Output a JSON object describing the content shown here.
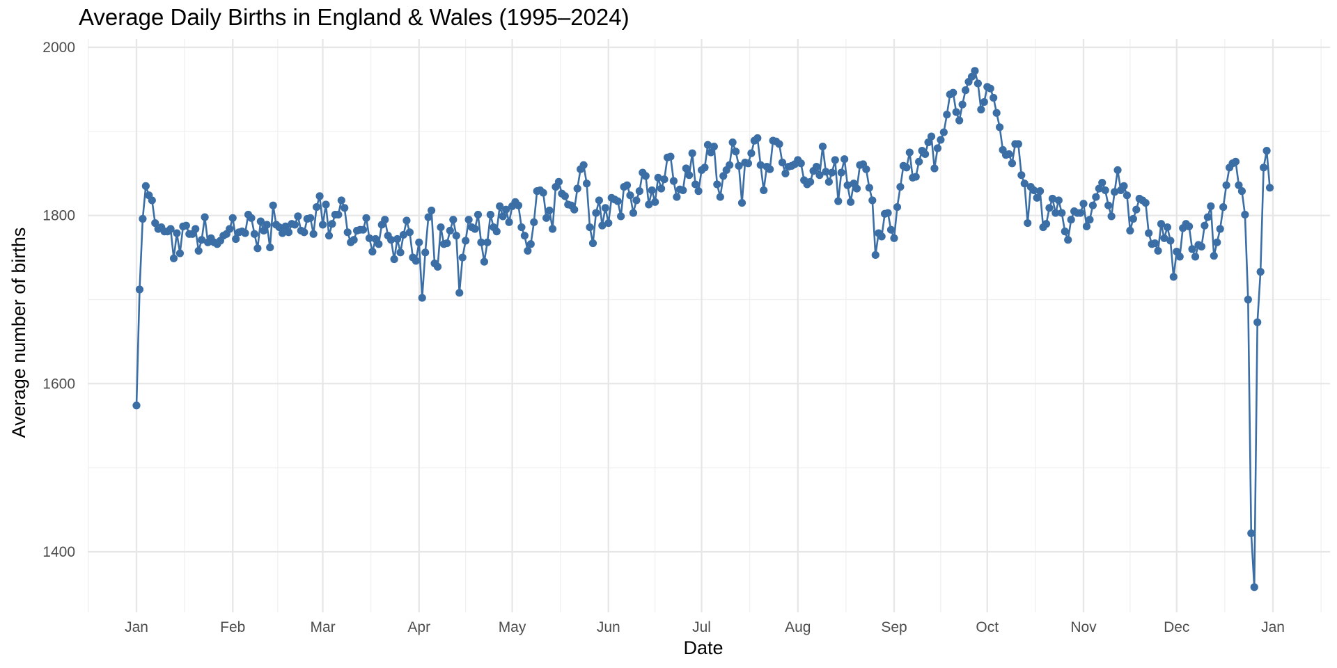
{
  "chart_data": {
    "type": "line",
    "title": "Average Daily Births in England & Wales (1995–2024)",
    "xlabel": "Date",
    "ylabel": "Average number of births",
    "ylim": [
      1330,
      2000
    ],
    "yticks": [
      1400,
      1600,
      1800,
      2000
    ],
    "xticks": [
      "Jan",
      "Feb",
      "Mar",
      "Apr",
      "May",
      "Jun",
      "Jul",
      "Aug",
      "Sep",
      "Oct",
      "Nov",
      "Dec",
      "Jan"
    ],
    "xtick_days": [
      0,
      31,
      60,
      91,
      121,
      152,
      182,
      213,
      244,
      274,
      305,
      335,
      366
    ],
    "grid": true,
    "legend": "none",
    "series_color": "#3A6EA5",
    "series": [
      {
        "name": "Average daily births",
        "x_start": "Jan 1",
        "x_end": "Dec 31",
        "values": [
          1574,
          1712,
          1796,
          1835,
          1824,
          1818,
          1791,
          1784,
          1786,
          1781,
          1781,
          1784,
          1749,
          1779,
          1755,
          1787,
          1788,
          1778,
          1778,
          1784,
          1758,
          1771,
          1798,
          1768,
          1773,
          1768,
          1766,
          1770,
          1776,
          1778,
          1784,
          1797,
          1772,
          1780,
          1781,
          1779,
          1801,
          1797,
          1778,
          1761,
          1793,
          1782,
          1789,
          1762,
          1812,
          1789,
          1786,
          1779,
          1787,
          1780,
          1790,
          1789,
          1799,
          1782,
          1780,
          1796,
          1797,
          1778,
          1810,
          1823,
          1789,
          1813,
          1776,
          1790,
          1801,
          1801,
          1818,
          1809,
          1780,
          1768,
          1771,
          1782,
          1783,
          1783,
          1797,
          1773,
          1757,
          1772,
          1766,
          1789,
          1795,
          1776,
          1771,
          1748,
          1772,
          1756,
          1777,
          1794,
          1780,
          1750,
          1746,
          1768,
          1702,
          1756,
          1798,
          1806,
          1743,
          1739,
          1786,
          1766,
          1767,
          1782,
          1795,
          1776,
          1708,
          1750,
          1770,
          1795,
          1786,
          1784,
          1801,
          1768,
          1745,
          1768,
          1801,
          1786,
          1781,
          1811,
          1799,
          1807,
          1792,
          1811,
          1816,
          1812,
          1786,
          1776,
          1758,
          1766,
          1792,
          1829,
          1830,
          1827,
          1797,
          1806,
          1784,
          1834,
          1840,
          1826,
          1823,
          1813,
          1812,
          1807,
          1832,
          1855,
          1860,
          1838,
          1786,
          1767,
          1803,
          1818,
          1788,
          1809,
          1791,
          1821,
          1819,
          1817,
          1799,
          1834,
          1836,
          1824,
          1803,
          1818,
          1829,
          1851,
          1847,
          1813,
          1830,
          1816,
          1845,
          1832,
          1843,
          1869,
          1870,
          1841,
          1822,
          1831,
          1830,
          1856,
          1848,
          1874,
          1837,
          1829,
          1854,
          1857,
          1884,
          1875,
          1882,
          1837,
          1822,
          1847,
          1854,
          1860,
          1887,
          1876,
          1859,
          1815,
          1863,
          1862,
          1874,
          1889,
          1892,
          1860,
          1830,
          1858,
          1855,
          1889,
          1888,
          1885,
          1863,
          1850,
          1858,
          1859,
          1861,
          1866,
          1862,
          1842,
          1837,
          1840,
          1853,
          1858,
          1848,
          1882,
          1852,
          1840,
          1851,
          1866,
          1817,
          1851,
          1867,
          1836,
          1816,
          1838,
          1832,
          1860,
          1861,
          1855,
          1833,
          1818,
          1753,
          1779,
          1775,
          1802,
          1803,
          1783,
          1773,
          1810,
          1834,
          1859,
          1857,
          1875,
          1845,
          1846,
          1864,
          1877,
          1873,
          1887,
          1894,
          1856,
          1880,
          1890,
          1899,
          1920,
          1944,
          1946,
          1923,
          1913,
          1932,
          1949,
          1959,
          1965,
          1972,
          1957,
          1926,
          1935,
          1953,
          1951,
          1940,
          1922,
          1905,
          1878,
          1872,
          1873,
          1862,
          1885,
          1885,
          1848,
          1838,
          1791,
          1834,
          1830,
          1821,
          1829,
          1786,
          1790,
          1809,
          1820,
          1803,
          1818,
          1803,
          1781,
          1771,
          1795,
          1805,
          1803,
          1803,
          1814,
          1787,
          1795,
          1812,
          1822,
          1832,
          1839,
          1830,
          1812,
          1799,
          1828,
          1854,
          1830,
          1835,
          1824,
          1782,
          1796,
          1807,
          1820,
          1818,
          1815,
          1779,
          1766,
          1767,
          1758,
          1790,
          1773,
          1786,
          1770,
          1727,
          1757,
          1751,
          1785,
          1790,
          1787,
          1760,
          1751,
          1765,
          1763,
          1788,
          1798,
          1811,
          1752,
          1768,
          1784,
          1810,
          1836,
          1857,
          1862,
          1864,
          1836,
          1829,
          1801,
          1700,
          1422,
          1358,
          1673,
          1733,
          1857,
          1877,
          1833
        ]
      }
    ]
  }
}
